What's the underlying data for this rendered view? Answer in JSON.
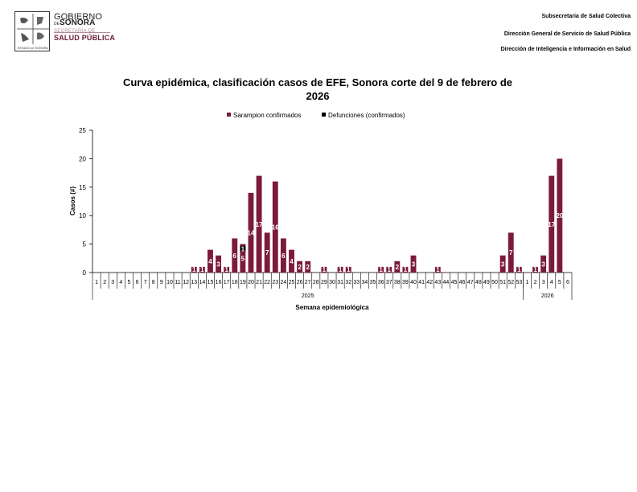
{
  "header": {
    "logo": {
      "gobierno": "GOBIERNO",
      "de": "DE",
      "sonora": "SONORA",
      "secretaria": "SECRETARÍA DE",
      "salud_publica": "SALUD PÚBLICA",
      "seal_caption": "ESTADO de SONORA"
    },
    "lines": [
      "Subsecretaria de Salud Colectiva",
      "Dirección General de Servicio de Salud Pública",
      "Dirección de Inteligencia e Información en Salud"
    ]
  },
  "colors": {
    "sarampion": "#7b1a3c",
    "defunciones": "#000000",
    "axis": "#000000"
  },
  "chart_data": {
    "type": "bar",
    "title": "Curva epidémica, clasificación casos de EFE, Sonora corte del 9 de febrero de 2026",
    "xlabel": "Semana epidemiológica",
    "ylabel": "Casos (#)",
    "ylim": [
      0,
      25
    ],
    "yticks": [
      0,
      5,
      10,
      15,
      20,
      25
    ],
    "legend_position": "top",
    "groups": [
      {
        "label": "2025",
        "categories": [
          "1",
          "2",
          "3",
          "4",
          "5",
          "6",
          "7",
          "8",
          "9",
          "10",
          "11",
          "12",
          "13",
          "14",
          "15",
          "16",
          "17",
          "18",
          "19",
          "20",
          "21",
          "22",
          "23",
          "24",
          "25",
          "26",
          "27",
          "28",
          "29",
          "30",
          "31",
          "32",
          "33",
          "34",
          "35",
          "36",
          "37",
          "38",
          "39",
          "40",
          "41",
          "42",
          "43",
          "44",
          "45",
          "46",
          "47",
          "48",
          "49",
          "50",
          "51",
          "52",
          "53"
        ]
      },
      {
        "label": "2026",
        "categories": [
          "1",
          "2",
          "3",
          "4",
          "5",
          "6"
        ]
      }
    ],
    "series": [
      {
        "name": "Sarampion confirmados",
        "values": [
          0,
          0,
          0,
          0,
          0,
          0,
          0,
          0,
          0,
          0,
          0,
          0,
          1,
          1,
          4,
          3,
          1,
          6,
          5,
          14,
          17,
          7,
          16,
          6,
          4,
          2,
          2,
          0,
          1,
          0,
          1,
          1,
          0,
          0,
          0,
          1,
          1,
          2,
          1,
          3,
          0,
          0,
          1,
          0,
          0,
          0,
          0,
          0,
          0,
          0,
          3,
          7,
          1,
          0,
          1,
          3,
          17,
          20,
          0
        ]
      },
      {
        "name": "Defunciones (confirmados)",
        "values": [
          0,
          0,
          0,
          0,
          0,
          0,
          0,
          0,
          0,
          0,
          0,
          0,
          0,
          0,
          0,
          0,
          0,
          0,
          1,
          0,
          0,
          0,
          0,
          0,
          0,
          0,
          0,
          0,
          0,
          0,
          0,
          0,
          0,
          0,
          0,
          0,
          0,
          0,
          0,
          0,
          0,
          0,
          0,
          0,
          0,
          0,
          0,
          0,
          0,
          0,
          0,
          0,
          0,
          0,
          0,
          0,
          0,
          0,
          0
        ]
      }
    ]
  }
}
